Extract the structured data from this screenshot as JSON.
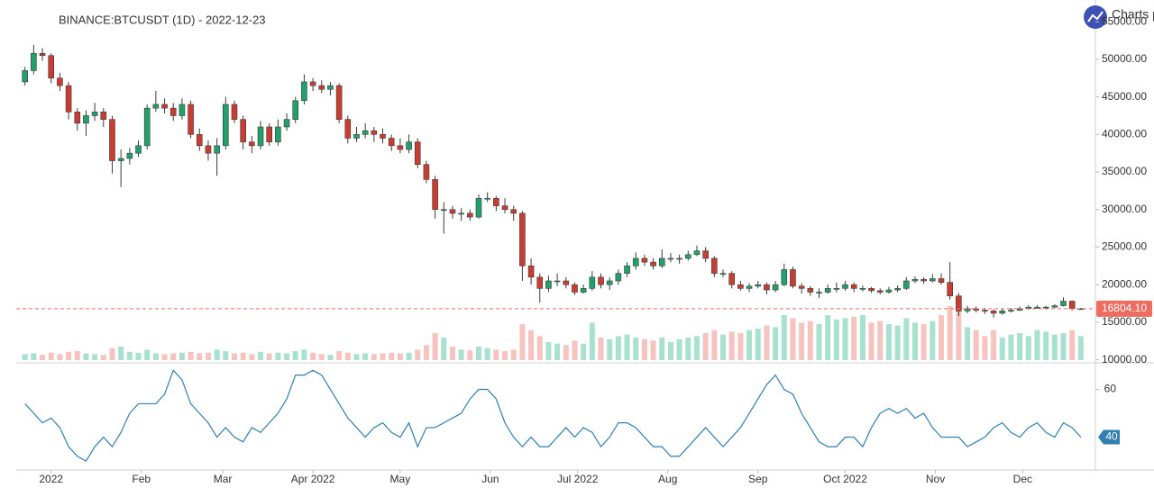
{
  "chart_data": {
    "type": "candlestick",
    "title": "BINANCE:BTCUSDT (1D) - 2022-12-23",
    "watermark": "Charts p",
    "x": [
      -9,
      -6,
      -3,
      0,
      3,
      6,
      9,
      12,
      15,
      18,
      21,
      24,
      27,
      30,
      33,
      36,
      39,
      42,
      45,
      48,
      51,
      54,
      57,
      60,
      63,
      66,
      69,
      72,
      75,
      78,
      81,
      84,
      87,
      90,
      93,
      96,
      99,
      102,
      105,
      108,
      111,
      114,
      117,
      120,
      123,
      126,
      129,
      132,
      135,
      138,
      141,
      144,
      147,
      150,
      153,
      156,
      159,
      162,
      165,
      168,
      171,
      174,
      177,
      180,
      183,
      186,
      189,
      192,
      195,
      198,
      201,
      204,
      207,
      210,
      213,
      216,
      219,
      222,
      225,
      228,
      231,
      234,
      237,
      240,
      243,
      246,
      249,
      252,
      255,
      258,
      261,
      264,
      267,
      270,
      273,
      276,
      279,
      282,
      285,
      288,
      291,
      294,
      297,
      300,
      303,
      306,
      309,
      312,
      315,
      318,
      321,
      324,
      327,
      330,
      333,
      336,
      339,
      342,
      345,
      348,
      351,
      354
    ],
    "open": [
      47000,
      48500,
      50800,
      50500,
      47500,
      46500,
      43000,
      41500,
      42500,
      43000,
      42000,
      36500,
      36800,
      37500,
      38500,
      43500,
      44000,
      43500,
      42500,
      44000,
      40000,
      38500,
      37500,
      38500,
      44000,
      42000,
      39000,
      38500,
      41000,
      39000,
      41000,
      42000,
      44500,
      47000,
      46500,
      46000,
      46500,
      42000,
      39500,
      40000,
      40500,
      40000,
      39500,
      38500,
      38000,
      39000,
      36000,
      34000,
      30000,
      30000,
      29500,
      29500,
      29000,
      31500,
      31500,
      30500,
      30000,
      29500,
      22500,
      21000,
      19500,
      20500,
      20500,
      20000,
      19000,
      19500,
      21000,
      20000,
      20500,
      21500,
      22500,
      23500,
      23000,
      22500,
      23500,
      23500,
      23500,
      24000,
      24500,
      23500,
      21500,
      21500,
      20000,
      19500,
      19800,
      20000,
      19300,
      20000,
      22000,
      19800,
      19500,
      19000,
      19000,
      19500,
      19500,
      20000,
      19500,
      19500,
      19200,
      19000,
      19300,
      19500,
      20500,
      20700,
      20500,
      20800,
      20300,
      18500,
      16500,
      16800,
      16600,
      16500,
      16200,
      16500,
      16600,
      16800,
      17000,
      17000,
      17000,
      17200,
      17800,
      16800
    ],
    "high": [
      49000,
      51900,
      51500,
      50800,
      48200,
      47000,
      43500,
      43200,
      44200,
      43500,
      42500,
      38000,
      38200,
      39200,
      44000,
      45800,
      44800,
      44200,
      44800,
      44500,
      40800,
      39200,
      39500,
      45000,
      44500,
      42500,
      39800,
      41800,
      41500,
      42000,
      42800,
      45000,
      48000,
      47500,
      47200,
      47000,
      46800,
      42500,
      41000,
      41500,
      41000,
      40800,
      40000,
      39500,
      40000,
      39500,
      36500,
      34500,
      31000,
      30500,
      30200,
      30000,
      32000,
      32300,
      31800,
      31500,
      30500,
      29800,
      23500,
      21500,
      21200,
      21500,
      21000,
      20300,
      20000,
      21800,
      21500,
      21000,
      22000,
      23000,
      24300,
      24000,
      23500,
      24700,
      24200,
      24000,
      24500,
      25200,
      25000,
      23800,
      22000,
      21800,
      20500,
      20200,
      20500,
      20300,
      20500,
      22800,
      22400,
      20200,
      19800,
      19500,
      20000,
      20300,
      20500,
      20300,
      19900,
      19700,
      19500,
      19700,
      19900,
      21000,
      21100,
      21000,
      21400,
      21500,
      23000,
      18900,
      17200,
      17100,
      16900,
      16700,
      16800,
      16900,
      17100,
      17300,
      17300,
      17200,
      17400,
      18300,
      17900,
      16900
    ],
    "low": [
      46500,
      48000,
      49800,
      46800,
      45800,
      42000,
      40500,
      39800,
      41800,
      41000,
      34800,
      33000,
      36000,
      37000,
      38000,
      43000,
      42800,
      41800,
      42000,
      39500,
      37800,
      36500,
      34500,
      38000,
      41500,
      38000,
      37500,
      38000,
      38500,
      38500,
      40500,
      41500,
      44000,
      45800,
      45500,
      45200,
      41500,
      38800,
      39000,
      39500,
      39000,
      38800,
      37800,
      37500,
      37500,
      35500,
      33500,
      28800,
      26800,
      28800,
      28500,
      28500,
      28800,
      31000,
      29800,
      29500,
      28500,
      20500,
      20000,
      17600,
      19000,
      19800,
      19500,
      18600,
      18800,
      19200,
      19500,
      19300,
      20000,
      21000,
      22000,
      22500,
      22000,
      22200,
      23000,
      22800,
      23200,
      23800,
      23000,
      21000,
      21000,
      19500,
      19200,
      19000,
      19500,
      18700,
      19000,
      19800,
      19500,
      18800,
      18500,
      18200,
      18800,
      19000,
      19200,
      19000,
      19100,
      18900,
      18700,
      18800,
      19000,
      19300,
      20200,
      20100,
      20300,
      20000,
      18000,
      15800,
      16200,
      16300,
      16100,
      15600,
      16000,
      16300,
      16500,
      16700,
      16800,
      16800,
      16900,
      17100,
      16600,
      16700
    ],
    "close": [
      48500,
      50800,
      50500,
      47500,
      46500,
      43000,
      41500,
      42500,
      43000,
      42000,
      36500,
      36800,
      37500,
      38500,
      43500,
      44000,
      43500,
      42500,
      44000,
      40000,
      38500,
      37500,
      38500,
      44000,
      42000,
      39000,
      38500,
      41000,
      39000,
      41000,
      42000,
      44500,
      47000,
      46500,
      46000,
      46500,
      42000,
      39500,
      40000,
      40500,
      40000,
      39500,
      38500,
      38000,
      39000,
      36000,
      34000,
      30000,
      30000,
      29500,
      29500,
      29000,
      31500,
      31500,
      30500,
      30000,
      29500,
      22500,
      21000,
      19500,
      20500,
      20500,
      20000,
      19000,
      19500,
      21000,
      20000,
      20500,
      21500,
      22500,
      23500,
      23000,
      22500,
      23500,
      23500,
      23500,
      24000,
      24500,
      23500,
      21500,
      21500,
      20000,
      19500,
      19800,
      20000,
      19300,
      20000,
      22000,
      19800,
      19500,
      19000,
      19000,
      19500,
      19500,
      20000,
      19500,
      19500,
      19200,
      19000,
      19300,
      19500,
      20500,
      20700,
      20500,
      20800,
      20300,
      18500,
      16500,
      16800,
      16600,
      16500,
      16200,
      16500,
      16600,
      16800,
      17000,
      17000,
      17000,
      17200,
      17800,
      16800,
      16804.1
    ],
    "volume": [
      40,
      45,
      35,
      50,
      40,
      55,
      60,
      45,
      40,
      35,
      80,
      90,
      55,
      50,
      70,
      45,
      40,
      45,
      50,
      55,
      45,
      50,
      70,
      60,
      45,
      50,
      40,
      55,
      45,
      50,
      45,
      60,
      70,
      50,
      40,
      35,
      60,
      50,
      40,
      45,
      40,
      45,
      50,
      45,
      50,
      70,
      100,
      180,
      150,
      90,
      70,
      65,
      90,
      80,
      70,
      60,
      70,
      240,
      200,
      160,
      120,
      110,
      100,
      130,
      110,
      250,
      150,
      140,
      160,
      170,
      150,
      140,
      130,
      150,
      120,
      140,
      150,
      160,
      180,
      200,
      170,
      190,
      180,
      200,
      210,
      230,
      220,
      300,
      280,
      250,
      260,
      240,
      300,
      270,
      280,
      290,
      300,
      250,
      260,
      240,
      230,
      280,
      250,
      240,
      260,
      300,
      360,
      330,
      220,
      200,
      160,
      200,
      150,
      170,
      180,
      160,
      200,
      190,
      170,
      180,
      200,
      160
    ],
    "up_color": "#22a06b",
    "down_color": "#c93c32",
    "outline_color": "#3b3b3b",
    "volume_up_color": "#a8e2cf",
    "volume_down_color": "#f6c3c0",
    "xlim": [
      -12,
      359
    ],
    "xticks": [
      {
        "value": 0,
        "label": "2022"
      },
      {
        "value": 31,
        "label": "Feb"
      },
      {
        "value": 59,
        "label": "Mar"
      },
      {
        "value": 90,
        "label": "Apr 2022"
      },
      {
        "value": 120,
        "label": "May"
      },
      {
        "value": 151,
        "label": "Jun"
      },
      {
        "value": 181,
        "label": "Jul 2022"
      },
      {
        "value": 212,
        "label": "Aug"
      },
      {
        "value": 243,
        "label": "Sep"
      },
      {
        "value": 273,
        "label": "Oct 2022"
      },
      {
        "value": 304,
        "label": "Nov"
      },
      {
        "value": 334,
        "label": "Dec"
      }
    ],
    "ylim": [
      9950,
      57900
    ],
    "yticks": [
      {
        "value": 10000,
        "label": "10000.00"
      },
      {
        "value": 15000,
        "label": "15000.00"
      },
      {
        "value": 20000,
        "label": "20000.00"
      },
      {
        "value": 25000,
        "label": "25000.00"
      },
      {
        "value": 30000,
        "label": "30000.00"
      },
      {
        "value": 35000,
        "label": "35000.00"
      },
      {
        "value": 40000,
        "label": "40000.00"
      },
      {
        "value": 45000,
        "label": "45000.00"
      },
      {
        "value": 50000,
        "label": "50000.00"
      },
      {
        "value": 55000,
        "label": "55000.00"
      }
    ],
    "last_price": {
      "value": 16804.1,
      "label": "16804.10",
      "color": "#ef6c61"
    },
    "oscillator": {
      "color": "#2f7fb0",
      "ylim": [
        27,
        70
      ],
      "yticks": [
        60
      ],
      "values": [
        54,
        50,
        46,
        48,
        44,
        36,
        32,
        30,
        36,
        40,
        36,
        42,
        50,
        54,
        54,
        54,
        58,
        68,
        64,
        54,
        50,
        46,
        40,
        44,
        40,
        38,
        44,
        42,
        46,
        50,
        56,
        66,
        66,
        68,
        66,
        60,
        54,
        48,
        44,
        40,
        44,
        46,
        42,
        40,
        46,
        36,
        44,
        44,
        46,
        48,
        50,
        56,
        60,
        60,
        56,
        46,
        40,
        36,
        40,
        36,
        36,
        40,
        44,
        40,
        44,
        42,
        36,
        40,
        46,
        46,
        44,
        40,
        36,
        36,
        32,
        32,
        36,
        40,
        44,
        40,
        36,
        40,
        44,
        50,
        56,
        62,
        66,
        60,
        58,
        50,
        44,
        38,
        36,
        36,
        40,
        40,
        36,
        44,
        50,
        52,
        50,
        52,
        48,
        50,
        44,
        40,
        40,
        40,
        36,
        38,
        40,
        44,
        46,
        42,
        40,
        44,
        46,
        42,
        40,
        46,
        44,
        40
      ]
    }
  }
}
